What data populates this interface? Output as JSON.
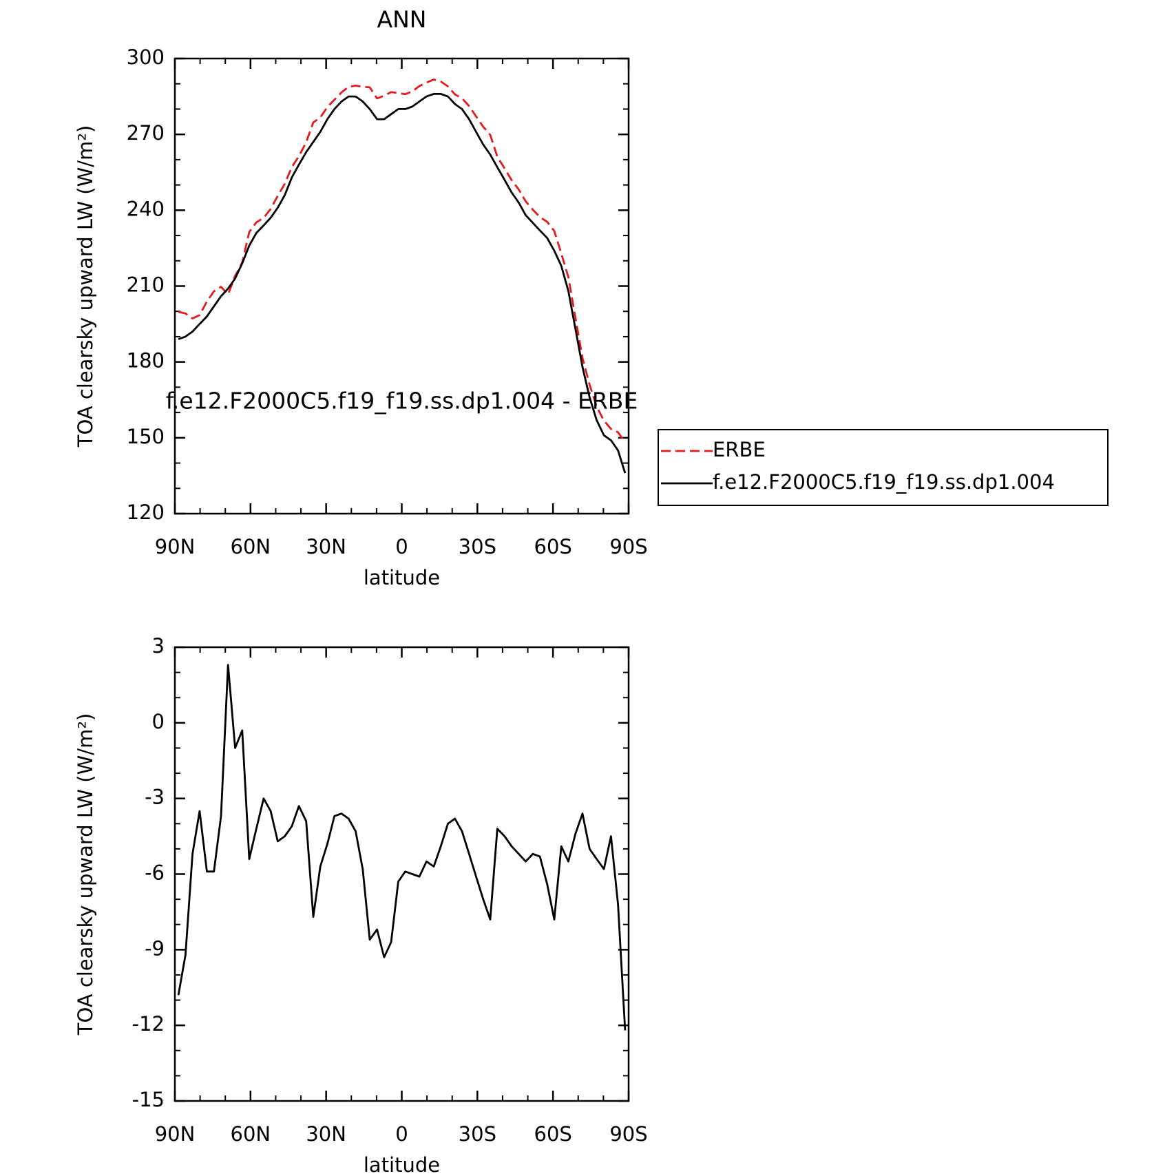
{
  "chart_data": [
    {
      "type": "line",
      "title": "ANN",
      "xlabel": "latitude",
      "ylabel": "TOA clearsky upward LW (W/m²)",
      "x": [
        88.6,
        85.8,
        83.0,
        80.2,
        77.3,
        74.5,
        71.7,
        68.9,
        66.1,
        63.3,
        60.5,
        57.7,
        54.8,
        52.0,
        49.2,
        46.4,
        43.6,
        40.8,
        37.9,
        35.1,
        32.3,
        29.5,
        26.7,
        23.9,
        21.1,
        18.3,
        15.5,
        12.7,
        9.8,
        7.0,
        4.2,
        1.4,
        -1.4,
        -4.2,
        -7.0,
        -9.8,
        -12.7,
        -15.5,
        -18.3,
        -21.1,
        -23.9,
        -26.7,
        -29.5,
        -32.3,
        -35.1,
        -37.9,
        -40.8,
        -43.6,
        -46.4,
        -49.2,
        -52.0,
        -54.8,
        -57.7,
        -60.5,
        -63.3,
        -66.1,
        -68.9,
        -71.7,
        -74.5,
        -77.3,
        -80.2,
        -83.0,
        -85.8,
        -88.6
      ],
      "series": [
        {
          "name": "ERBE",
          "color": "#e41a1c",
          "dashed": true,
          "values": [
            199.8,
            199.2,
            197.2,
            198.5,
            203.9,
            207.9,
            209.7,
            206.7,
            214,
            219.3,
            231.4,
            235.2,
            237,
            240.5,
            245.7,
            250.5,
            257.1,
            261.3,
            266.9,
            274.7,
            276.7,
            280.8,
            283.7,
            286.6,
            288.8,
            289.3,
            288.8,
            288.6,
            284.2,
            285.3,
            286.7,
            286.3,
            285.9,
            287,
            289.1,
            290.5,
            291.7,
            290.9,
            289,
            285.8,
            284.3,
            281.2,
            277.1,
            273,
            269.8,
            261.2,
            256.5,
            251.9,
            248.2,
            243.5,
            240.2,
            237.3,
            235.4,
            231.8,
            222.9,
            213.5,
            197.4,
            181.6,
            171,
            162.4,
            156.8,
            153.5,
            152.2,
            148.2
          ]
        },
        {
          "name": "f.e12.F2000C5.f19_f19.ss.dp1.004",
          "color": "#000000",
          "dashed": false,
          "values": [
            189,
            190,
            192,
            195,
            198,
            202,
            206,
            209,
            213,
            219,
            226,
            231,
            234,
            237,
            241,
            246,
            253,
            258,
            263,
            267,
            271,
            276,
            280,
            283,
            285,
            285,
            283,
            280,
            276,
            276,
            278,
            280,
            280,
            281,
            283,
            285,
            286,
            286,
            285,
            282,
            280,
            276,
            271,
            266,
            262,
            257,
            252,
            247,
            243,
            238,
            235,
            232,
            229,
            224,
            218,
            208,
            193,
            178,
            166,
            157,
            151,
            149,
            145,
            136
          ]
        }
      ],
      "xlim": [
        90,
        -90
      ],
      "xticks": [
        {
          "value": 90,
          "label": "90N"
        },
        {
          "value": 60,
          "label": "60N"
        },
        {
          "value": 30,
          "label": "30N"
        },
        0,
        {
          "value": -30,
          "label": "30S"
        },
        {
          "value": -60,
          "label": "60S"
        },
        {
          "value": -90,
          "label": "90S"
        }
      ],
      "xminor": [
        80,
        70,
        50,
        40,
        20,
        10,
        -10,
        -20,
        -40,
        -50,
        -70,
        -80
      ],
      "ylim": [
        120,
        300
      ],
      "yticks": [
        120,
        150,
        180,
        210,
        240,
        270,
        300
      ],
      "yminor": [
        130,
        140,
        160,
        170,
        190,
        200,
        220,
        230,
        250,
        260,
        280,
        290
      ],
      "legend": "right"
    },
    {
      "type": "line",
      "title": "f.e12.F2000C5.f19_f19.ss.dp1.004 - ERBE",
      "xlabel": "latitude",
      "ylabel": "TOA clearsky upward LW (W/m²)",
      "x": [
        88.6,
        85.8,
        83.0,
        80.2,
        77.3,
        74.5,
        71.7,
        68.9,
        66.1,
        63.3,
        60.5,
        57.7,
        54.8,
        52.0,
        49.2,
        46.4,
        43.6,
        40.8,
        37.9,
        35.1,
        32.3,
        29.5,
        26.7,
        23.9,
        21.1,
        18.3,
        15.5,
        12.7,
        9.8,
        7.0,
        4.2,
        1.4,
        -1.4,
        -4.2,
        -7.0,
        -9.8,
        -12.7,
        -15.5,
        -18.3,
        -21.1,
        -23.9,
        -26.7,
        -29.5,
        -32.3,
        -35.1,
        -37.9,
        -40.8,
        -43.6,
        -46.4,
        -49.2,
        -52.0,
        -54.8,
        -57.7,
        -60.5,
        -63.3,
        -66.1,
        -68.9,
        -71.7,
        -74.5,
        -77.3,
        -80.2,
        -83.0,
        -85.8,
        -88.6
      ],
      "color": "#000000",
      "values": [
        -10.8,
        -9.2,
        -5.2,
        -3.5,
        -5.9,
        -5.9,
        -3.7,
        2.3,
        -1.0,
        -0.3,
        -5.4,
        -4.2,
        -3.0,
        -3.5,
        -4.7,
        -4.5,
        -4.1,
        -3.3,
        -3.9,
        -7.7,
        -5.7,
        -4.8,
        -3.7,
        -3.6,
        -3.8,
        -4.3,
        -5.8,
        -8.6,
        -8.2,
        -9.3,
        -8.7,
        -6.3,
        -5.9,
        -6.0,
        -6.1,
        -5.5,
        -5.7,
        -4.9,
        -4.0,
        -3.8,
        -4.3,
        -5.2,
        -6.1,
        -7.0,
        -7.8,
        -4.2,
        -4.5,
        -4.9,
        -5.2,
        -5.5,
        -5.2,
        -5.3,
        -6.4,
        -7.8,
        -4.9,
        -5.5,
        -4.4,
        -3.6,
        -5.0,
        -5.4,
        -5.8,
        -4.5,
        -7.2,
        -12.2
      ],
      "xlim": [
        90,
        -90
      ],
      "xticks": [
        {
          "value": 90,
          "label": "90N"
        },
        {
          "value": 60,
          "label": "60N"
        },
        {
          "value": 30,
          "label": "30N"
        },
        0,
        {
          "value": -30,
          "label": "30S"
        },
        {
          "value": -60,
          "label": "60S"
        },
        {
          "value": -90,
          "label": "90S"
        }
      ],
      "xminor": [
        80,
        70,
        50,
        40,
        20,
        10,
        -10,
        -20,
        -40,
        -50,
        -70,
        -80
      ],
      "ylim": [
        -15,
        3
      ],
      "yticks": [
        -15,
        -12,
        -9,
        -6,
        -3,
        0,
        3
      ],
      "yminor": [
        -14,
        -13,
        -11,
        -10,
        -8,
        -7,
        -5,
        -4,
        -2,
        -1,
        1,
        2
      ]
    }
  ]
}
